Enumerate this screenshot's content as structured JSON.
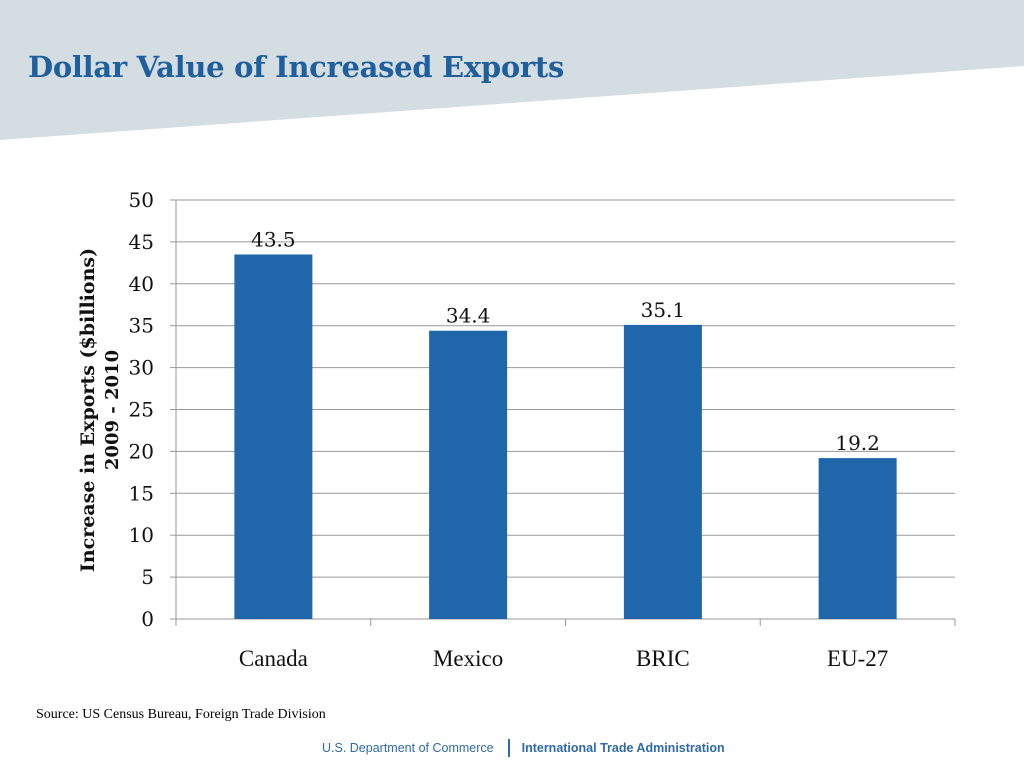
{
  "slide": {
    "title": "Dollar Value of Increased Exports",
    "source": "Source:  US Census Bureau, Foreign Trade Division",
    "footer": {
      "department": "U.S. Department of Commerce",
      "agency": "International Trade Administration"
    },
    "colors": {
      "banner": "#d4dde2",
      "title": "#1f5f9e",
      "bar": "#1f66aa",
      "footer": "#2f6aa6"
    }
  },
  "chart_data": {
    "type": "bar",
    "categories": [
      "Canada",
      "Mexico",
      "BRIC",
      "EU-27"
    ],
    "values": [
      43.5,
      34.4,
      35.1,
      19.2
    ],
    "data_labels": [
      "43.5",
      "34.4",
      "35.1",
      "19.2"
    ],
    "title": "",
    "xlabel": "",
    "ylabel": [
      "Increase in Exports ($billions)",
      "2009 - 2010"
    ],
    "ylim": [
      0,
      50
    ],
    "yticks": [
      0,
      5,
      10,
      15,
      20,
      25,
      30,
      35,
      40,
      45,
      50
    ],
    "grid": true,
    "legend": "none"
  }
}
